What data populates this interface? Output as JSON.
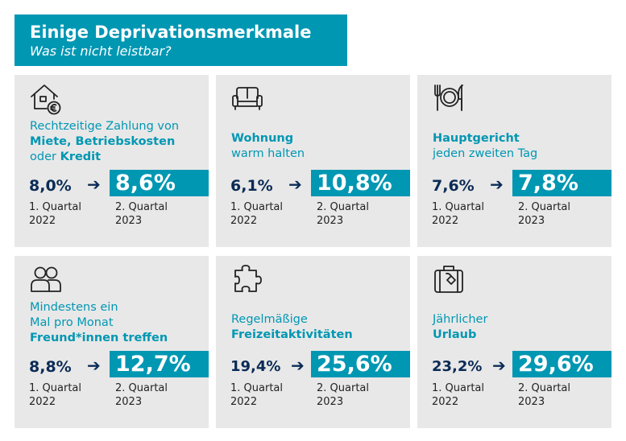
{
  "header": {
    "title": "Einige Deprivationsmerkmale",
    "subtitle": "Was ist nicht leistbar?"
  },
  "period_labels": {
    "old_line1": "1. Quartal",
    "old_line2": "2022",
    "new_line1": "2. Quartal",
    "new_line2": "2023"
  },
  "arrow": "➔",
  "colors": {
    "accent": "#0097b3",
    "dark_blue": "#0a2b55",
    "card_bg": "#e8e8e8"
  },
  "cards": [
    {
      "icon": "house-euro-icon",
      "label": {
        "l1": "Rechtzeitige Zahlung von",
        "l2": "Miete, Betriebskosten",
        "l3a": "oder ",
        "l3b": "Kredit"
      },
      "old_value": "8,0%",
      "new_value": "8,6%"
    },
    {
      "icon": "sofa-icon",
      "label": {
        "l1": "Wohnung",
        "l2": "warm halten"
      },
      "old_value": "6,1%",
      "new_value": "10,8%"
    },
    {
      "icon": "plate-cutlery-icon",
      "label": {
        "l1": "Hauptgericht",
        "l2": "jeden zweiten Tag"
      },
      "old_value": "7,6%",
      "new_value": "7,8%"
    },
    {
      "icon": "people-icon",
      "label": {
        "l1": "Mindestens ein",
        "l2": "Mal pro Monat",
        "l3": "Freund*innen treffen"
      },
      "old_value": "8,8%",
      "new_value": "12,7%"
    },
    {
      "icon": "puzzle-icon",
      "label": {
        "l1": "Regelmäßige",
        "l2": "Freizeitaktivitäten"
      },
      "old_value": "19,4%",
      "new_value": "25,6%"
    },
    {
      "icon": "suitcase-icon",
      "label": {
        "l1": "Jährlicher",
        "l2": "Urlaub"
      },
      "old_value": "23,2%",
      "new_value": "29,6%"
    }
  ]
}
